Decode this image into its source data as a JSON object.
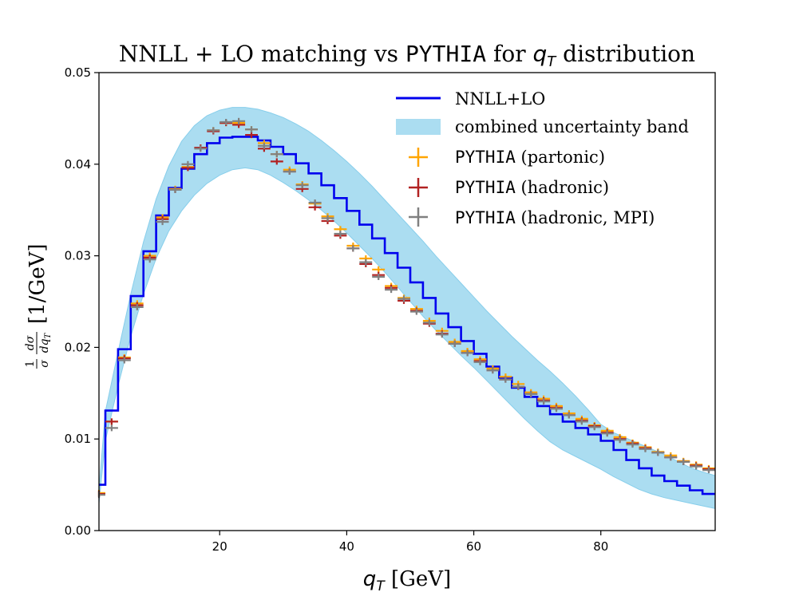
{
  "chart_data": {
    "type": "line",
    "title": {
      "part1": "NNLL + LO matching vs ",
      "mono": "PYTHIA",
      "part2": " for ",
      "var": "q",
      "var_sub": "T",
      "part3": " distribution"
    },
    "xlabel": {
      "var": "q",
      "sub": "T",
      "unit": " [GeV]"
    },
    "ylabel": {
      "frac_num": "1",
      "frac_den": "σ",
      "d_num": "dσ",
      "d_den": "dq",
      "d_den_sub": "T",
      "unit": "[1/GeV]"
    },
    "xlim": [
      1,
      98
    ],
    "ylim": [
      0,
      0.05
    ],
    "xticks": [
      20,
      40,
      60,
      80
    ],
    "yticks": [
      0,
      0.01,
      0.02,
      0.03,
      0.04,
      0.05
    ],
    "ytick_labels": [
      "0.00",
      "0.01",
      "0.02",
      "0.03",
      "0.04",
      "0.05"
    ],
    "bin_edges": [
      0,
      2,
      4,
      6,
      8,
      10,
      12,
      14,
      16,
      18,
      20,
      22,
      24,
      26,
      28,
      30,
      32,
      34,
      36,
      38,
      40,
      42,
      44,
      46,
      48,
      50,
      52,
      54,
      56,
      58,
      60,
      62,
      64,
      66,
      68,
      70,
      72,
      74,
      76,
      78,
      80,
      82,
      84,
      86,
      88,
      90,
      92,
      94,
      96,
      98
    ],
    "series": [
      {
        "name": "NNLL+LO",
        "label": "NNLL+LO",
        "style": "step",
        "color": "#0000ee",
        "values": [
          0.005,
          0.0131,
          0.0198,
          0.0256,
          0.0305,
          0.0344,
          0.0374,
          0.0395,
          0.0411,
          0.0423,
          0.0429,
          0.043,
          0.043,
          0.0426,
          0.0419,
          0.0411,
          0.0401,
          0.039,
          0.0377,
          0.0363,
          0.0349,
          0.0334,
          0.0319,
          0.0303,
          0.0287,
          0.0271,
          0.0254,
          0.0237,
          0.0222,
          0.0207,
          0.0193,
          0.0179,
          0.0167,
          0.0156,
          0.0146,
          0.0136,
          0.0127,
          0.0119,
          0.0112,
          0.0105,
          0.0098,
          0.0088,
          0.0077,
          0.0068,
          0.006,
          0.0054,
          0.0049,
          0.0044,
          0.004
        ]
      },
      {
        "name": "combined uncertainty band",
        "label": "combined uncertainty band",
        "style": "band",
        "color": "#87ceeb",
        "x": [
          1,
          2,
          4,
          6,
          8,
          10,
          12,
          14,
          16,
          18,
          20,
          22,
          24,
          26,
          28,
          30,
          32,
          34,
          36,
          38,
          40,
          42,
          44,
          46,
          48,
          50,
          52,
          54,
          56,
          58,
          60,
          62,
          64,
          66,
          68,
          70,
          72,
          74,
          76,
          78,
          80,
          82,
          84,
          86,
          88,
          90,
          92,
          94,
          96,
          98
        ],
        "upper": [
          0.0045,
          0.013,
          0.0195,
          0.0258,
          0.0315,
          0.0362,
          0.0398,
          0.0425,
          0.0442,
          0.0453,
          0.0459,
          0.0462,
          0.0462,
          0.046,
          0.0456,
          0.0451,
          0.0444,
          0.0436,
          0.0426,
          0.0415,
          0.0403,
          0.039,
          0.0376,
          0.0361,
          0.0346,
          0.0331,
          0.0316,
          0.03,
          0.0285,
          0.027,
          0.0255,
          0.024,
          0.0226,
          0.0212,
          0.0199,
          0.0186,
          0.0174,
          0.0161,
          0.0147,
          0.0132,
          0.0116,
          0.0107,
          0.0101,
          0.0095,
          0.0089,
          0.0083,
          0.0076,
          0.0069,
          0.0064,
          0.006
        ],
        "lower": [
          0.003,
          0.0098,
          0.0158,
          0.0212,
          0.0258,
          0.0297,
          0.0327,
          0.0349,
          0.0366,
          0.0379,
          0.0388,
          0.0394,
          0.0396,
          0.0394,
          0.0388,
          0.038,
          0.0371,
          0.0361,
          0.035,
          0.0338,
          0.0325,
          0.0311,
          0.0297,
          0.0282,
          0.0266,
          0.025,
          0.0234,
          0.0219,
          0.0205,
          0.0191,
          0.0178,
          0.0164,
          0.015,
          0.0136,
          0.0122,
          0.0109,
          0.0097,
          0.0088,
          0.0081,
          0.0074,
          0.0067,
          0.0059,
          0.0052,
          0.0045,
          0.004,
          0.0036,
          0.0033,
          0.003,
          0.0027,
          0.0024
        ]
      },
      {
        "name": "PYTHIA (partonic)",
        "label_mono": "PYTHIA",
        "label_rest": " (partonic)",
        "style": "errorbar",
        "color": "#ffa500",
        "x": [
          1,
          3,
          5,
          7,
          9,
          11,
          13,
          15,
          17,
          19,
          21,
          23,
          25,
          27,
          29,
          31,
          33,
          35,
          37,
          39,
          41,
          43,
          45,
          47,
          49,
          51,
          53,
          55,
          57,
          59,
          61,
          63,
          65,
          67,
          69,
          71,
          73,
          75,
          77,
          79,
          81,
          83,
          85,
          87,
          89,
          91,
          93,
          95,
          97
        ],
        "values": [
          0.0041,
          0.0119,
          0.0189,
          0.0248,
          0.03,
          0.0342,
          0.0373,
          0.0397,
          0.0418,
          0.0437,
          0.0445,
          0.0445,
          0.0438,
          0.0423,
          0.0411,
          0.0394,
          0.0378,
          0.0357,
          0.0343,
          0.0329,
          0.0311,
          0.0297,
          0.0285,
          0.0267,
          0.0254,
          0.0242,
          0.0229,
          0.0218,
          0.0206,
          0.0196,
          0.0187,
          0.0177,
          0.0168,
          0.016,
          0.0151,
          0.0144,
          0.0136,
          0.0128,
          0.0122,
          0.0115,
          0.0109,
          0.0102,
          0.0096,
          0.0091,
          0.0086,
          0.0082,
          0.0076,
          0.0072,
          0.0068
        ]
      },
      {
        "name": "PYTHIA (hadronic)",
        "label_mono": "PYTHIA",
        "label_rest": " (hadronic)",
        "style": "errorbar",
        "color": "#b22222",
        "x": [
          1,
          3,
          5,
          7,
          9,
          11,
          13,
          15,
          17,
          19,
          21,
          23,
          25,
          27,
          29,
          31,
          33,
          35,
          37,
          39,
          41,
          43,
          45,
          47,
          49,
          51,
          53,
          55,
          57,
          59,
          61,
          63,
          65,
          67,
          69,
          71,
          73,
          75,
          77,
          79,
          81,
          83,
          85,
          87,
          89,
          91,
          93,
          95,
          97
        ],
        "values": [
          0.004,
          0.0119,
          0.0188,
          0.0246,
          0.0298,
          0.034,
          0.0372,
          0.0396,
          0.0418,
          0.0436,
          0.0445,
          0.0443,
          0.0432,
          0.0417,
          0.0403,
          0.0392,
          0.0373,
          0.0353,
          0.0338,
          0.0322,
          0.0308,
          0.0291,
          0.0279,
          0.0265,
          0.0251,
          0.024,
          0.0226,
          0.0215,
          0.0204,
          0.0194,
          0.0185,
          0.0175,
          0.0165,
          0.0157,
          0.0149,
          0.0142,
          0.0134,
          0.0126,
          0.012,
          0.0114,
          0.0107,
          0.01,
          0.0095,
          0.009,
          0.0085,
          0.008,
          0.0075,
          0.0071,
          0.0067
        ]
      },
      {
        "name": "PYTHIA (hadronic, MPI)",
        "label_mono": "PYTHIA",
        "label_rest": " (hadronic, MPI)",
        "style": "errorbar",
        "color": "#808080",
        "x": [
          1,
          3,
          5,
          7,
          9,
          11,
          13,
          15,
          17,
          19,
          21,
          23,
          25,
          27,
          29,
          31,
          33,
          35,
          37,
          39,
          41,
          43,
          45,
          47,
          49,
          51,
          53,
          55,
          57,
          59,
          61,
          63,
          65,
          67,
          69,
          71,
          73,
          75,
          77,
          79,
          81,
          83,
          85,
          87,
          89,
          91,
          93,
          95,
          97
        ],
        "values": [
          0.0039,
          0.0112,
          0.0186,
          0.0244,
          0.0296,
          0.0337,
          0.0372,
          0.04,
          0.0417,
          0.0437,
          0.0446,
          0.0447,
          0.0438,
          0.042,
          0.0411,
          0.0392,
          0.0377,
          0.0358,
          0.0341,
          0.0324,
          0.0308,
          0.0293,
          0.0277,
          0.0263,
          0.0253,
          0.0239,
          0.0227,
          0.0214,
          0.0204,
          0.0194,
          0.0184,
          0.0175,
          0.0165,
          0.0157,
          0.0149,
          0.0141,
          0.0133,
          0.0126,
          0.0119,
          0.0113,
          0.0106,
          0.0099,
          0.0094,
          0.0089,
          0.0085,
          0.008,
          0.0075,
          0.007,
          0.0066
        ]
      }
    ],
    "legend_position": "top-right",
    "grid": false
  }
}
